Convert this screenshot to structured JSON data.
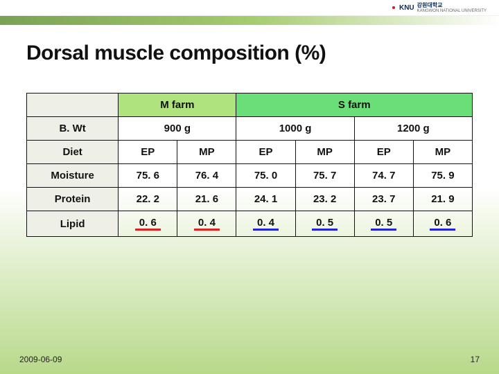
{
  "logo": {
    "text": "KNU",
    "sub": "강원대학교",
    "sub2": "KANGWON NATIONAL UNIVERSITY"
  },
  "title": "Dorsal muscle composition (%)",
  "table": {
    "farm_headers": [
      "M farm",
      "S farm"
    ],
    "weights": [
      "900 g",
      "1000 g",
      "1200 g"
    ],
    "diet_labels": [
      "EP",
      "MP",
      "EP",
      "MP",
      "EP",
      "MP"
    ],
    "row_labels": [
      "B. Wt",
      "Diet",
      "Moisture",
      "Protein",
      "Lipid"
    ],
    "rows": {
      "moisture": [
        "75. 6",
        "76. 4",
        "75. 0",
        "75. 7",
        "74. 7",
        "75. 9"
      ],
      "protein": [
        "22. 2",
        "21. 6",
        "24. 1",
        "23. 2",
        "23. 7",
        "21. 9"
      ],
      "lipid": [
        "0. 6",
        "0. 4",
        "0. 4",
        "0. 5",
        "0. 5",
        "0. 6"
      ]
    },
    "underline": {
      "lipid_farm_m": "red",
      "lipid_farm_s": "blue"
    },
    "colors": {
      "farm_m_bg": "#aee37d",
      "farm_s_bg": "#6adf77",
      "border": "#111111"
    }
  },
  "footer": {
    "date": "2009-06-09",
    "page": "17"
  }
}
